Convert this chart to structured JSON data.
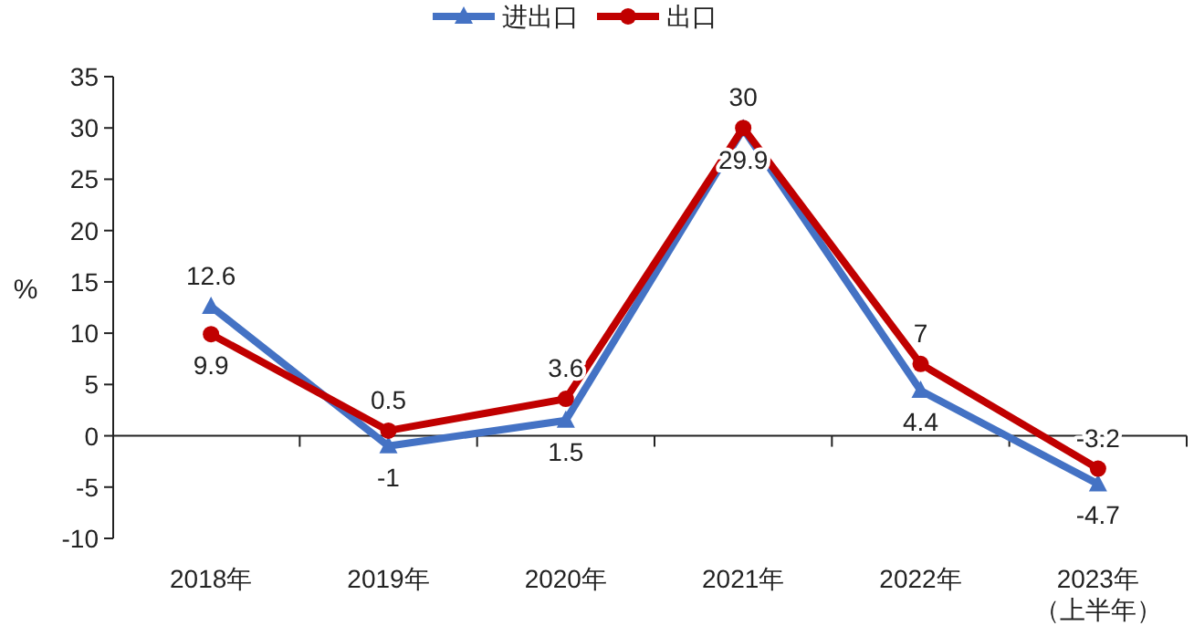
{
  "chart_data": {
    "type": "line",
    "ylabel": "%",
    "categories": [
      "2018年",
      "2019年",
      "2020年",
      "2021年",
      "2022年",
      "2023年（上半年）"
    ],
    "series": [
      {
        "name": "进出口",
        "color": "#4472c4",
        "marker": "triangle",
        "values": [
          12.6,
          -1,
          1.5,
          29.9,
          4.4,
          -4.7
        ]
      },
      {
        "name": "出口",
        "color": "#c00000",
        "marker": "circle",
        "values": [
          9.9,
          0.5,
          3.6,
          30,
          7,
          -3.2
        ]
      }
    ],
    "ylim": [
      -10,
      35
    ],
    "yticks": [
      -10,
      -5,
      0,
      5,
      10,
      15,
      20,
      25,
      30,
      35
    ],
    "legend": "top",
    "data_labels": true,
    "line_style": "solid"
  }
}
